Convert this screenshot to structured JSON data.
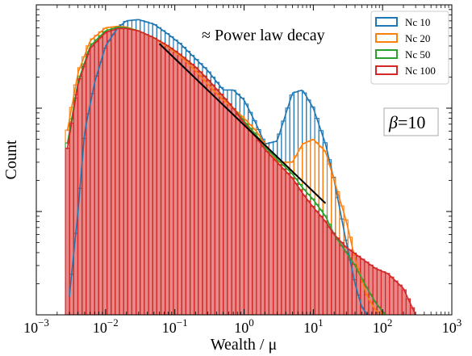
{
  "chart_data": {
    "type": "histogram",
    "title": "",
    "xlabel": "Wealth / μ",
    "ylabel": "Count",
    "xscale": "log",
    "yscale": "log",
    "xlim": [
      0.001,
      1000
    ],
    "ylim": [
      1,
      1000
    ],
    "grid": false,
    "legend_position": "top-right",
    "x_ticks": [
      {
        "base": "10",
        "exp": "−3",
        "value": 0.001
      },
      {
        "base": "10",
        "exp": "−2",
        "value": 0.01
      },
      {
        "base": "10",
        "exp": "−1",
        "value": 0.1
      },
      {
        "base": "10",
        "exp": "0",
        "value": 1
      },
      {
        "base": "10",
        "exp": "1",
        "value": 10
      },
      {
        "base": "10",
        "exp": "2",
        "value": 100
      },
      {
        "base": "10",
        "exp": "3",
        "value": 1000
      }
    ],
    "annotation": "≈ Power law decay",
    "beta_label": {
      "symbol": "β",
      "text": "=10"
    },
    "fit_line": {
      "color": "#000000",
      "x": [
        0.06,
        15
      ],
      "y": [
        420,
        12
      ]
    },
    "series": [
      {
        "name": "Nc 10",
        "color": "#1f77b4",
        "xmin": 0.003,
        "xmax": 60,
        "x": [
          0.003,
          0.004,
          0.005,
          0.007,
          0.01,
          0.015,
          0.02,
          0.03,
          0.05,
          0.08,
          0.12,
          0.2,
          0.3,
          0.5,
          0.7,
          1,
          1.5,
          2,
          3,
          5,
          7,
          10,
          15,
          20,
          30,
          40,
          50,
          60
        ],
        "y": [
          1.5,
          10,
          60,
          180,
          400,
          600,
          700,
          720,
          650,
          520,
          420,
          300,
          230,
          150,
          150,
          120,
          70,
          45,
          48,
          140,
          150,
          100,
          45,
          20,
          5,
          2,
          1.2,
          1
        ]
      },
      {
        "name": "Nc 20",
        "color": "#ff7f0e",
        "xmin": 0.0028,
        "xmax": 110,
        "x": [
          0.0028,
          0.004,
          0.006,
          0.01,
          0.015,
          0.02,
          0.03,
          0.05,
          0.08,
          0.12,
          0.2,
          0.3,
          0.5,
          0.7,
          1,
          1.5,
          2,
          3,
          5,
          7,
          10,
          15,
          20,
          30,
          40,
          60,
          80,
          110
        ],
        "y": [
          60,
          220,
          450,
          600,
          620,
          610,
          560,
          480,
          390,
          320,
          230,
          170,
          120,
          100,
          80,
          60,
          45,
          30,
          30,
          45,
          50,
          38,
          20,
          8,
          3.5,
          1.5,
          1.1,
          1
        ]
      },
      {
        "name": "Nc 50",
        "color": "#2ca02c",
        "xmin": 0.0028,
        "xmax": 110,
        "x": [
          0.0028,
          0.004,
          0.006,
          0.01,
          0.015,
          0.02,
          0.03,
          0.05,
          0.08,
          0.12,
          0.2,
          0.3,
          0.5,
          0.7,
          1,
          1.5,
          2,
          3,
          5,
          7,
          10,
          15,
          20,
          30,
          40,
          60,
          80,
          110
        ],
        "y": [
          45,
          180,
          400,
          560,
          610,
          600,
          560,
          480,
          400,
          330,
          250,
          190,
          130,
          100,
          75,
          55,
          42,
          32,
          23,
          17,
          13,
          9,
          6,
          4,
          3,
          1.8,
          1.3,
          1
        ]
      },
      {
        "name": "Nc 100",
        "color": "#d62728",
        "xmin": 0.0028,
        "xmax": 300,
        "x": [
          0.0028,
          0.004,
          0.006,
          0.01,
          0.015,
          0.02,
          0.03,
          0.05,
          0.08,
          0.12,
          0.2,
          0.3,
          0.5,
          0.7,
          1,
          1.5,
          2,
          3,
          5,
          7,
          10,
          15,
          20,
          30,
          50,
          80,
          120,
          200,
          300
        ],
        "y": [
          40,
          170,
          380,
          540,
          590,
          590,
          560,
          480,
          400,
          330,
          250,
          190,
          130,
          100,
          72,
          52,
          40,
          30,
          21,
          15,
          11,
          8,
          6,
          4.5,
          3.5,
          2.8,
          2.5,
          1.8,
          1
        ]
      }
    ]
  }
}
